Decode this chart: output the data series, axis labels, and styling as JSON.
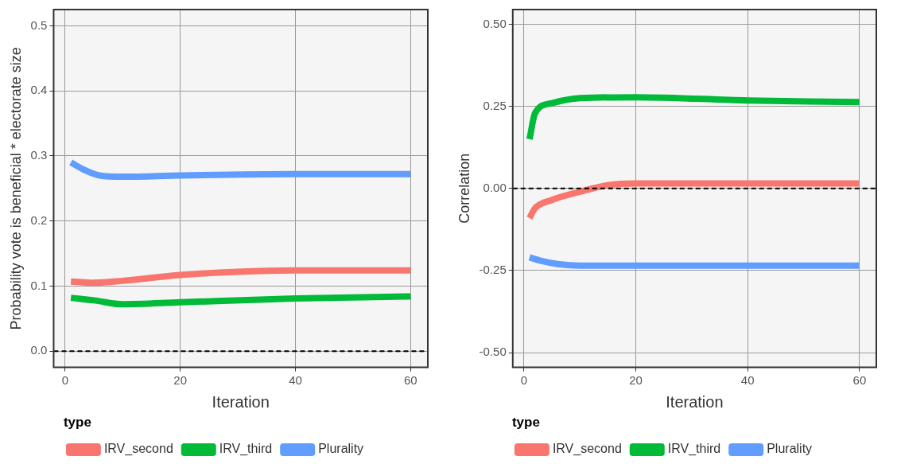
{
  "chart_data": [
    {
      "type": "line",
      "xlabel": "Iteration",
      "ylabel": "Probability vote is beneficial * electorate size",
      "legend_title": "type",
      "legend": "bottom",
      "grid": true,
      "marker": "none",
      "line_style": "solid",
      "xlim": [
        -2,
        63
      ],
      "xticks": [
        0,
        20,
        40,
        60
      ],
      "ylim": [
        -0.025,
        0.525
      ],
      "yticks": [
        {
          "value": 0,
          "label": "0.0"
        },
        {
          "value": 0.1,
          "label": "0.1"
        },
        {
          "value": 0.2,
          "label": "0.2"
        },
        {
          "value": 0.3,
          "label": "0.3"
        },
        {
          "value": 0.4,
          "label": "0.4"
        },
        {
          "value": 0.5,
          "label": "0.5"
        }
      ],
      "ref_lines": [
        {
          "axis": "y",
          "value": 0,
          "line_style": "dashed",
          "color": "#000000"
        }
      ],
      "series": [
        {
          "name": "IRV_second",
          "color": "#f8766d",
          "x": [
            1,
            5,
            10,
            20,
            30,
            40,
            60
          ],
          "values": [
            0.107,
            0.105,
            0.108,
            0.117,
            0.122,
            0.124,
            0.124
          ]
        },
        {
          "name": "IRV_third",
          "color": "#00ba38",
          "x": [
            1,
            5,
            10,
            20,
            40,
            60
          ],
          "values": [
            0.082,
            0.078,
            0.072,
            0.075,
            0.081,
            0.084
          ]
        },
        {
          "name": "Plurality",
          "color": "#619cff",
          "x": [
            1,
            3,
            6,
            10,
            20,
            40,
            60
          ],
          "values": [
            0.29,
            0.28,
            0.27,
            0.268,
            0.27,
            0.272,
            0.272
          ]
        }
      ]
    },
    {
      "type": "line",
      "xlabel": "Iteration",
      "ylabel": "Correlation",
      "legend_title": "type",
      "legend": "bottom",
      "grid": true,
      "marker": "none",
      "line_style": "solid",
      "xlim": [
        -2,
        63
      ],
      "xticks": [
        0,
        20,
        40,
        60
      ],
      "ylim": [
        -0.545,
        0.545
      ],
      "yticks": [
        {
          "value": -0.5,
          "label": "-0.50"
        },
        {
          "value": -0.25,
          "label": "-0.25"
        },
        {
          "value": 0,
          "label": "0.00"
        },
        {
          "value": 0.25,
          "label": "0.25"
        },
        {
          "value": 0.5,
          "label": "0.50"
        }
      ],
      "ref_lines": [
        {
          "axis": "y",
          "value": 0,
          "line_style": "dashed",
          "color": "#000000"
        }
      ],
      "series": [
        {
          "name": "IRV_second",
          "color": "#f8766d",
          "x": [
            1,
            2,
            5,
            10,
            15,
            20,
            60
          ],
          "values": [
            -0.09,
            -0.06,
            -0.035,
            -0.01,
            0.01,
            0.015,
            0.015
          ]
        },
        {
          "name": "IRV_third",
          "color": "#00ba38",
          "x": [
            1,
            2,
            5,
            10,
            20,
            40,
            60
          ],
          "values": [
            0.15,
            0.23,
            0.26,
            0.275,
            0.278,
            0.268,
            0.263
          ]
        },
        {
          "name": "Plurality",
          "color": "#619cff",
          "x": [
            1,
            3,
            6,
            10,
            60
          ],
          "values": [
            -0.21,
            -0.22,
            -0.23,
            -0.235,
            -0.235
          ]
        }
      ]
    }
  ]
}
